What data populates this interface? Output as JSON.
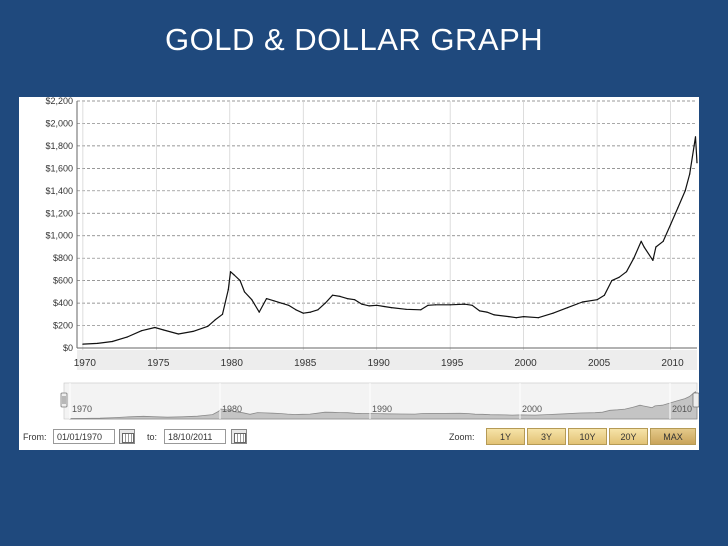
{
  "slide": {
    "title": "GOLD & DOLLAR GRAPH"
  },
  "chart_data": {
    "type": "line",
    "ylim": [
      0,
      2200
    ],
    "y_ticks": [
      0,
      200,
      400,
      600,
      800,
      1000,
      1200,
      1400,
      1600,
      1800,
      2000,
      2200
    ],
    "y_tick_labels": [
      "$0",
      "$200",
      "$400",
      "$600",
      "$800",
      "$1,000",
      "$1,200",
      "$1,400",
      "$1,600",
      "$1,800",
      "$2,000",
      "$2,200"
    ],
    "xlim": [
      1969.6,
      2011.8
    ],
    "x_ticks": [
      1970,
      1975,
      1980,
      1985,
      1990,
      1995,
      2000,
      2005,
      2010
    ],
    "x_tick_labels": [
      "1970",
      "1975",
      "1980",
      "1985",
      "1990",
      "1995",
      "2000",
      "2005",
      "2010"
    ],
    "grid": true,
    "series": [
      {
        "x": [
          1970,
          1971,
          1972,
          1973,
          1974,
          1974.9,
          1975.5,
          1976.5,
          1977.5,
          1978.5,
          1979,
          1979.5,
          1979.9,
          1980.05,
          1980.3,
          1980.7,
          1981,
          1981.5,
          1982,
          1982.5,
          1983,
          1983.5,
          1984,
          1984.5,
          1985,
          1985.5,
          1986,
          1986.5,
          1987,
          1987.5,
          1988,
          1988.5,
          1989,
          1989.5,
          1990,
          1990.5,
          1991,
          1992,
          1993,
          1993.5,
          1994,
          1995,
          1996,
          1996.5,
          1997,
          1997.5,
          1998,
          1999,
          1999.5,
          2000,
          2001,
          2002,
          2003,
          2004,
          2005,
          2005.5,
          2006,
          2006.5,
          2007,
          2007.5,
          2008,
          2008.2,
          2008.8,
          2009,
          2009.5,
          2010,
          2010.5,
          2011,
          2011.3,
          2011.6,
          2011.7,
          2011.8
        ],
        "values": [
          35,
          41,
          58,
          97,
          154,
          183,
          160,
          125,
          148,
          193,
          250,
          300,
          520,
          680,
          650,
          600,
          500,
          430,
          320,
          440,
          420,
          400,
          380,
          340,
          310,
          320,
          340,
          400,
          470,
          460,
          440,
          430,
          390,
          375,
          380,
          370,
          360,
          345,
          340,
          380,
          385,
          385,
          390,
          380,
          330,
          320,
          295,
          280,
          270,
          280,
          270,
          310,
          360,
          410,
          430,
          470,
          600,
          630,
          680,
          800,
          950,
          900,
          780,
          900,
          950,
          1100,
          1250,
          1400,
          1550,
          1800,
          1880,
          1650
        ]
      }
    ],
    "navigator": {
      "labels": [
        "1970",
        "1980",
        "1990",
        "2000",
        "2010"
      ]
    }
  },
  "controls": {
    "from_label": "From:",
    "from_date": "01/01/1970",
    "to_label": "to:",
    "to_date": "18/10/2011",
    "zoom_label": "Zoom:",
    "zoom_buttons": [
      "1Y",
      "3Y",
      "10Y",
      "20Y",
      "MAX"
    ]
  }
}
